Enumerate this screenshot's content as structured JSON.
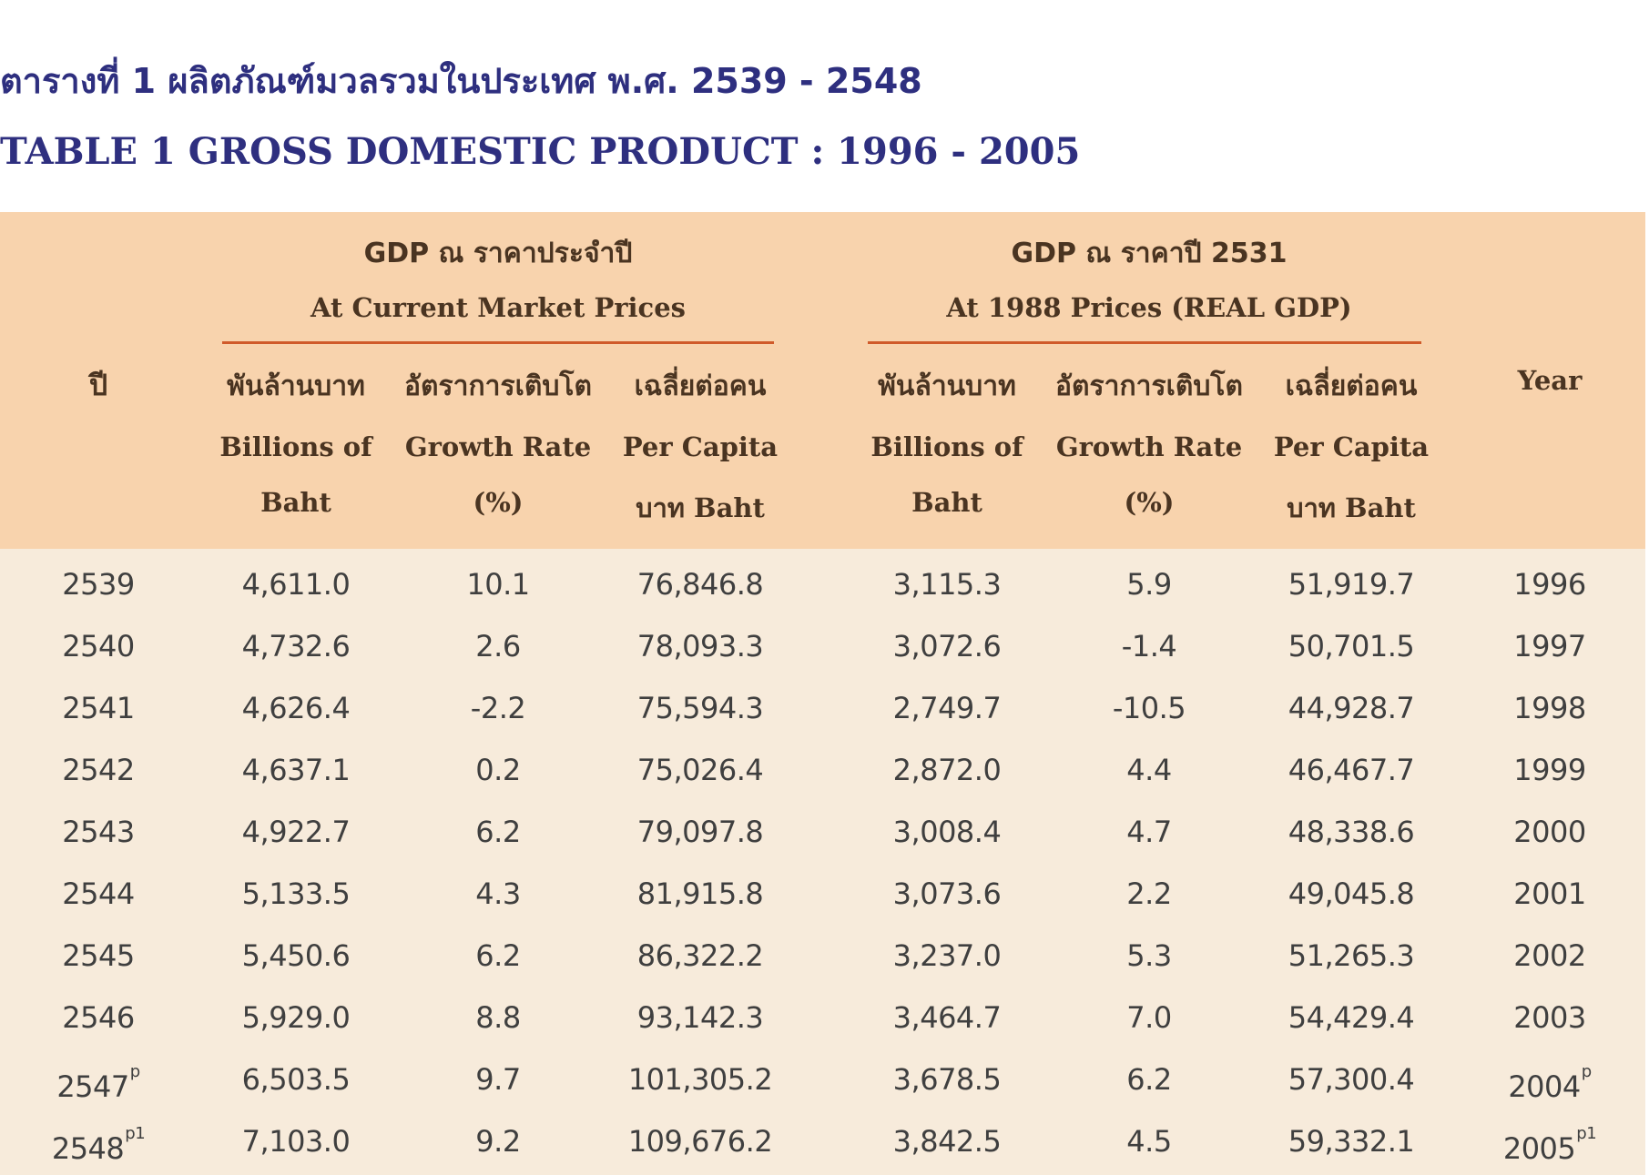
{
  "title_th": "ตารางที่ 1  ผลิตภัณฑ์มวลรวมในประเทศ พ.ศ. 2539 - 2548",
  "title_en": "TABLE 1  GROSS DOMESTIC PRODUCT : 1996 - 2005",
  "header": {
    "col_year_th": "ปี",
    "col_year_en": "Year",
    "current": {
      "title_th": "GDP ณ ราคาประจำปี",
      "title_en": "At Current Market Prices"
    },
    "real": {
      "title_th": "GDP ณ ราคาปี 2531",
      "title_en": "At 1988 Prices (REAL GDP)"
    },
    "subcols": [
      {
        "th": "พันล้านบาท",
        "en1": "Billions of",
        "en2": "Baht"
      },
      {
        "th": "อัตราการเติบโต",
        "en1": "Growth Rate",
        "en2": "(%)"
      },
      {
        "th": "เฉลี่ยต่อคน",
        "en1": "Per Capita",
        "en2": "บาท Baht"
      }
    ]
  },
  "rows": [
    {
      "th_year": "2539",
      "th_sup": "",
      "cur_billion": "4,611.0",
      "cur_growth": "10.1",
      "cur_per_capita": "76,846.8",
      "real_billion": "3,115.3",
      "real_growth": "5.9",
      "real_per_capita": "51,919.7",
      "year": "1996",
      "year_sup": ""
    },
    {
      "th_year": "2540",
      "th_sup": "",
      "cur_billion": "4,732.6",
      "cur_growth": "2.6",
      "cur_per_capita": "78,093.3",
      "real_billion": "3,072.6",
      "real_growth": "-1.4",
      "real_per_capita": "50,701.5",
      "year": "1997",
      "year_sup": ""
    },
    {
      "th_year": "2541",
      "th_sup": "",
      "cur_billion": "4,626.4",
      "cur_growth": "-2.2",
      "cur_per_capita": "75,594.3",
      "real_billion": "2,749.7",
      "real_growth": "-10.5",
      "real_per_capita": "44,928.7",
      "year": "1998",
      "year_sup": ""
    },
    {
      "th_year": "2542",
      "th_sup": "",
      "cur_billion": "4,637.1",
      "cur_growth": "0.2",
      "cur_per_capita": "75,026.4",
      "real_billion": "2,872.0",
      "real_growth": "4.4",
      "real_per_capita": "46,467.7",
      "year": "1999",
      "year_sup": ""
    },
    {
      "th_year": "2543",
      "th_sup": "",
      "cur_billion": "4,922.7",
      "cur_growth": "6.2",
      "cur_per_capita": "79,097.8",
      "real_billion": "3,008.4",
      "real_growth": "4.7",
      "real_per_capita": "48,338.6",
      "year": "2000",
      "year_sup": ""
    },
    {
      "th_year": "2544",
      "th_sup": "",
      "cur_billion": "5,133.5",
      "cur_growth": "4.3",
      "cur_per_capita": "81,915.8",
      "real_billion": "3,073.6",
      "real_growth": "2.2",
      "real_per_capita": "49,045.8",
      "year": "2001",
      "year_sup": ""
    },
    {
      "th_year": "2545",
      "th_sup": "",
      "cur_billion": "5,450.6",
      "cur_growth": "6.2",
      "cur_per_capita": "86,322.2",
      "real_billion": "3,237.0",
      "real_growth": "5.3",
      "real_per_capita": "51,265.3",
      "year": "2002",
      "year_sup": ""
    },
    {
      "th_year": "2546",
      "th_sup": "",
      "cur_billion": "5,929.0",
      "cur_growth": "8.8",
      "cur_per_capita": "93,142.3",
      "real_billion": "3,464.7",
      "real_growth": "7.0",
      "real_per_capita": "54,429.4",
      "year": "2003",
      "year_sup": ""
    },
    {
      "th_year": "2547",
      "th_sup": "p",
      "cur_billion": "6,503.5",
      "cur_growth": "9.7",
      "cur_per_capita": "101,305.2",
      "real_billion": "3,678.5",
      "real_growth": "6.2",
      "real_per_capita": "57,300.4",
      "year": "2004",
      "year_sup": "p"
    },
    {
      "th_year": "2548",
      "th_sup": "p1",
      "cur_billion": "7,103.0",
      "cur_growth": "9.2",
      "cur_per_capita": "109,676.2",
      "real_billion": "3,842.5",
      "real_growth": "4.5",
      "real_per_capita": "59,332.1",
      "year": "2005",
      "year_sup": "p1"
    }
  ]
}
